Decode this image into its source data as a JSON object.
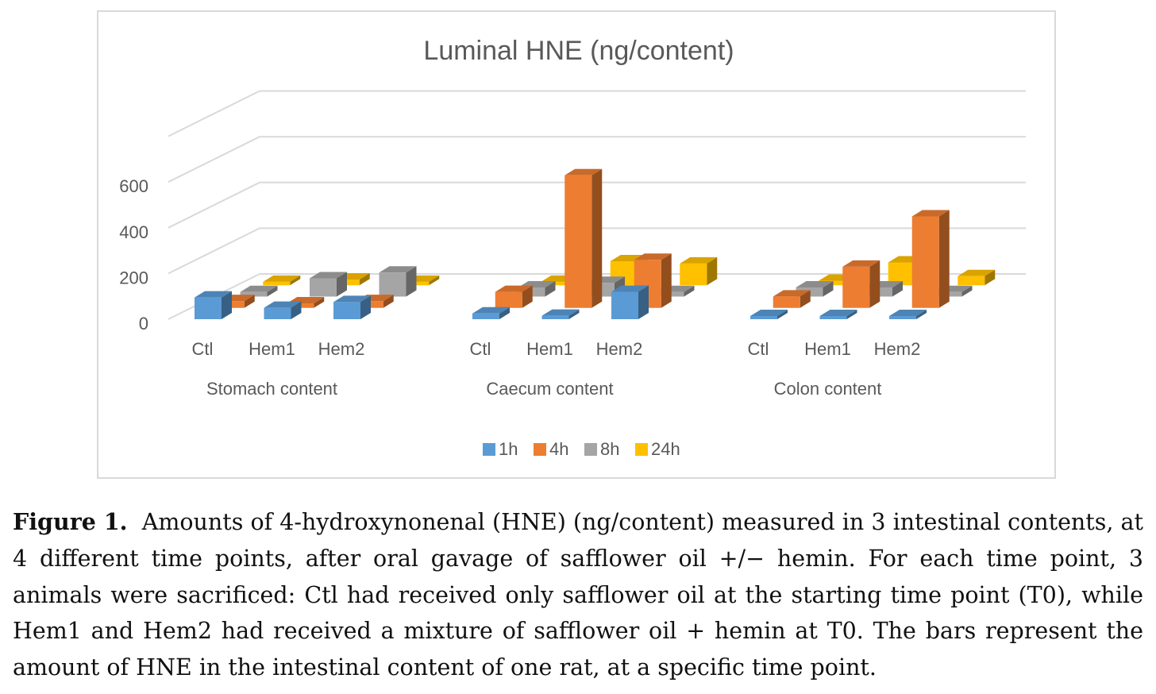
{
  "chart_data": {
    "type": "bar",
    "subtype": "3d-clustered-column",
    "title": "Luminal HNE (ng/content)",
    "groups": [
      "Stomach content",
      "Caecum content",
      "Colon content"
    ],
    "categories": [
      "Ctl",
      "Hem1",
      "Hem2"
    ],
    "series": [
      {
        "name": "1h",
        "color": "#5b9bd5",
        "values": [
          [
            95,
            50,
            75
          ],
          [
            25,
            15,
            120
          ],
          [
            5,
            5,
            5
          ]
        ]
      },
      {
        "name": "4h",
        "color": "#ed7d31",
        "values": [
          [
            30,
            20,
            30
          ],
          [
            70,
            580,
            210
          ],
          [
            50,
            180,
            400
          ]
        ]
      },
      {
        "name": "8h",
        "color": "#a5a5a5",
        "values": [
          [
            20,
            80,
            105
          ],
          [
            40,
            60,
            20
          ],
          [
            40,
            40,
            20
          ]
        ]
      },
      {
        "name": "24h",
        "color": "#ffc000",
        "values": [
          [
            15,
            25,
            15
          ],
          [
            15,
            105,
            95
          ],
          [
            20,
            100,
            40
          ]
        ]
      }
    ],
    "yticks": [
      0,
      200,
      400,
      600
    ],
    "ylim": [
      0,
      800
    ],
    "grid": true,
    "legend_position": "bottom"
  },
  "caption": {
    "label": "Figure 1.",
    "text": "Amounts of 4-hydroxynonenal (HNE) (ng/content) measured in 3 intestinal contents, at 4 different time points, after oral gavage of safflower oil +/− hemin. For each time point, 3 animals were sacrificed: Ctl had received only safflower oil at the starting time point (T0), while Hem1 and Hem2 had received a mixture of safflower oil + hemin at T0. The bars represent the amount of HNE in the intestinal content of one rat, at a specific time point."
  }
}
